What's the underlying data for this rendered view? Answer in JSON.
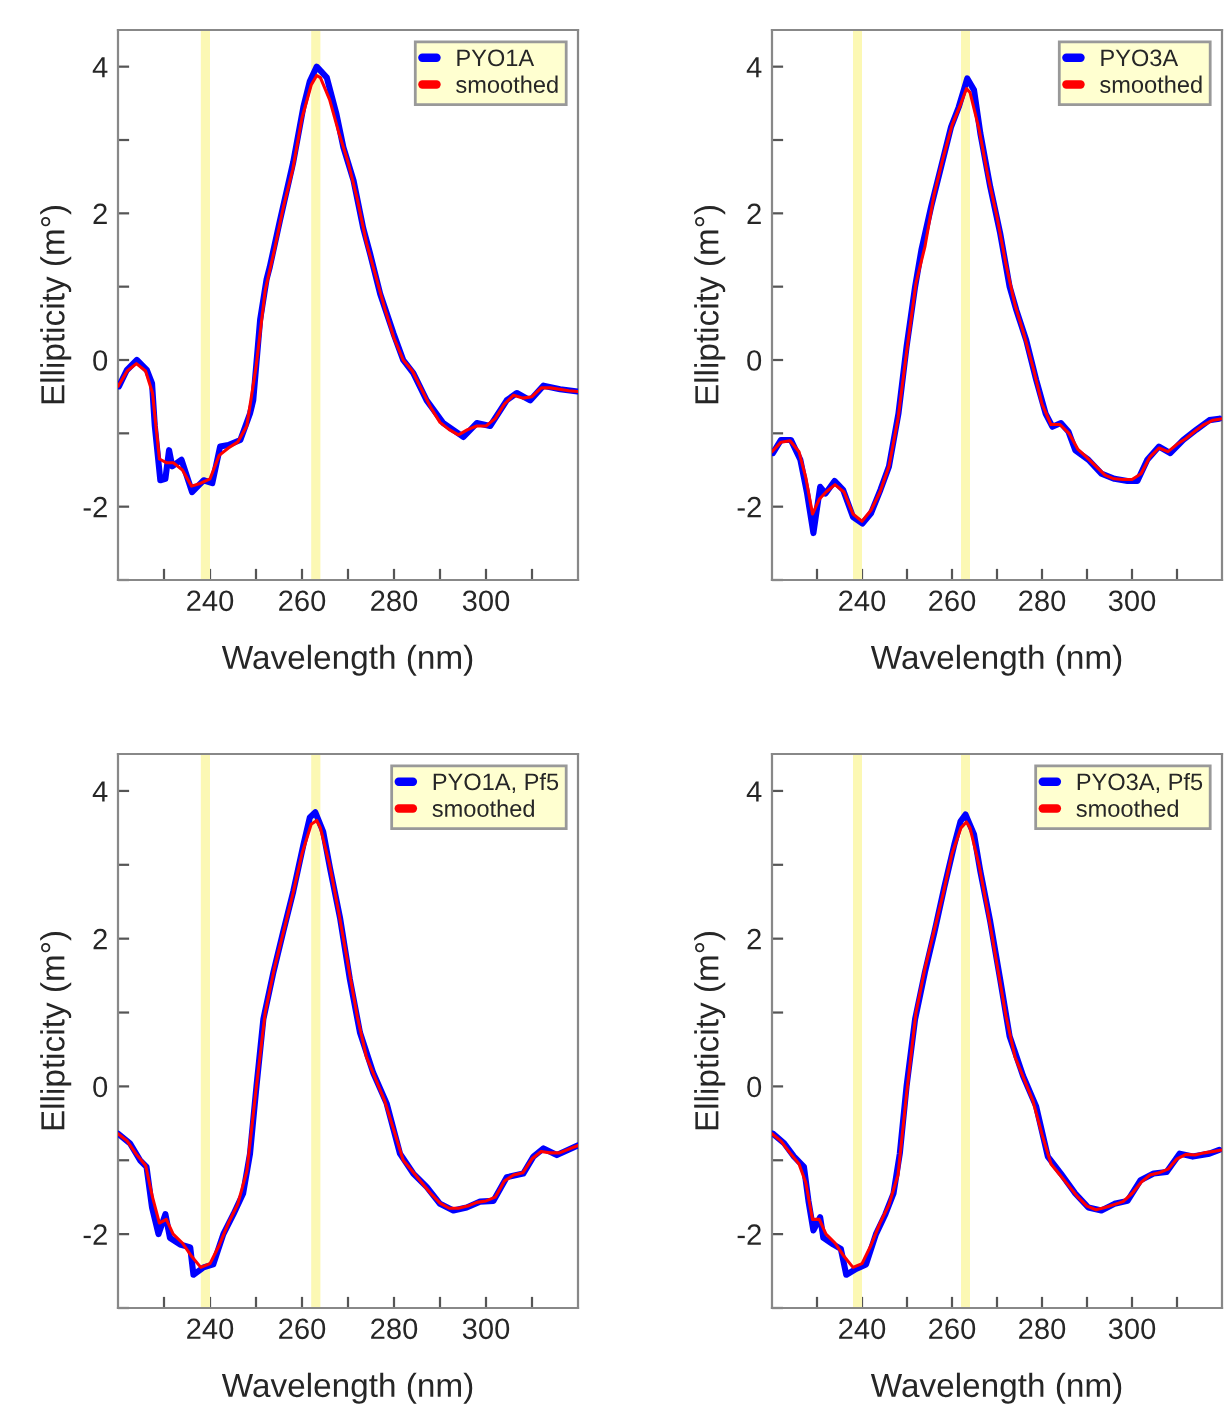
{
  "chart_data": [
    {
      "type": "line",
      "xlabel": "Wavelength (nm)",
      "ylabel": "Ellipticity (m°)",
      "xlim": [
        220,
        320
      ],
      "ylim": [
        -3,
        4.5
      ],
      "xticks": [
        {
          "value": 230,
          "label": null
        },
        240,
        {
          "value": 250,
          "label": null
        },
        260,
        {
          "value": 270,
          "label": null
        },
        280,
        {
          "value": 290,
          "label": null
        },
        300,
        {
          "value": 310,
          "label": null
        }
      ],
      "yticks": [
        {
          "value": -3,
          "label": null
        },
        -2,
        {
          "value": -1,
          "label": null
        },
        0,
        {
          "value": 1,
          "label": null
        },
        2,
        {
          "value": 3,
          "label": null
        },
        4
      ],
      "legend": "top right",
      "bands": [
        {
          "axis": "x",
          "from": 238,
          "to": 240,
          "color": "#fcf8b4"
        },
        {
          "axis": "x",
          "from": 262,
          "to": 264,
          "color": "#fcf8b4"
        }
      ],
      "series": [
        {
          "name": "PYO1A",
          "color": "#0000ff",
          "x": [
            220.2,
            221.9,
            224.1,
            226.3,
            227.4,
            228.0,
            229.2,
            230.3,
            231.1,
            231.8,
            233.8,
            236.1,
            238.6,
            240.5,
            242.2,
            244.0,
            246.6,
            248.7,
            249.4,
            250.9,
            252.3,
            253.0,
            255.2,
            258.1,
            260.3,
            261.7,
            263.2,
            265.4,
            267.5,
            269.0,
            271.2,
            273.3,
            274.8,
            277.0,
            279.9,
            282.0,
            284.2,
            287.1,
            290.7,
            295.1,
            298.0,
            300.9,
            304.5,
            306.7,
            309.6,
            312.5,
            316.1,
            319.9
          ],
          "values": [
            -0.36,
            -0.14,
            0.0,
            -0.14,
            -0.32,
            -0.9,
            -1.64,
            -1.62,
            -1.23,
            -1.45,
            -1.36,
            -1.8,
            -1.64,
            -1.68,
            -1.18,
            -1.16,
            -1.09,
            -0.73,
            -0.55,
            0.55,
            1.1,
            1.27,
            1.9,
            2.7,
            3.45,
            3.8,
            4.0,
            3.85,
            3.35,
            2.9,
            2.45,
            1.8,
            1.45,
            0.9,
            0.36,
            0.0,
            -0.18,
            -0.55,
            -0.86,
            -1.05,
            -0.86,
            -0.9,
            -0.55,
            -0.45,
            -0.55,
            -0.35,
            -0.4,
            -0.43
          ]
        },
        {
          "name": "smoothed",
          "color": "#ff0000",
          "x": [
            220,
            222,
            224,
            226,
            227.5,
            229,
            230.5,
            232,
            234,
            236,
            238,
            240,
            242,
            244,
            246,
            248,
            250,
            252,
            254,
            256,
            258,
            260,
            262,
            263.2,
            264,
            266,
            268,
            270,
            272,
            274,
            276,
            278,
            280,
            282,
            284,
            286,
            288,
            290,
            292,
            294,
            296,
            298,
            300,
            302,
            304,
            306,
            308,
            310,
            312,
            314,
            316,
            318,
            320
          ],
          "values": [
            -0.36,
            -0.15,
            -0.05,
            -0.15,
            -0.45,
            -1.35,
            -1.4,
            -1.4,
            -1.5,
            -1.72,
            -1.68,
            -1.62,
            -1.3,
            -1.2,
            -1.12,
            -0.9,
            -0.1,
            0.95,
            1.5,
            2.1,
            2.6,
            3.3,
            3.75,
            3.88,
            3.85,
            3.55,
            3.1,
            2.7,
            2.2,
            1.6,
            1.15,
            0.7,
            0.3,
            0.0,
            -0.15,
            -0.4,
            -0.65,
            -0.85,
            -0.95,
            -1.02,
            -0.95,
            -0.9,
            -0.9,
            -0.8,
            -0.6,
            -0.48,
            -0.52,
            -0.5,
            -0.38,
            -0.38,
            -0.4,
            -0.42,
            -0.43
          ]
        }
      ]
    },
    {
      "type": "line",
      "xlabel": "Wavelength (nm)",
      "ylabel": "Ellipticity (m°)",
      "xlim": [
        220,
        320
      ],
      "ylim": [
        -3,
        4.5
      ],
      "xticks": [
        {
          "value": 230,
          "label": null
        },
        240,
        {
          "value": 250,
          "label": null
        },
        260,
        {
          "value": 270,
          "label": null
        },
        280,
        {
          "value": 290,
          "label": null
        },
        300,
        {
          "value": 310,
          "label": null
        }
      ],
      "yticks": [
        {
          "value": -3,
          "label": null
        },
        -2,
        {
          "value": -1,
          "label": null
        },
        0,
        {
          "value": 1,
          "label": null
        },
        2,
        {
          "value": 3,
          "label": null
        },
        4
      ],
      "legend": "top right",
      "bands": [
        {
          "axis": "x",
          "from": 238,
          "to": 240,
          "color": "#fcf8b4"
        },
        {
          "axis": "x",
          "from": 262,
          "to": 264,
          "color": "#fcf8b4"
        }
      ],
      "series": [
        {
          "name": "PYO3A",
          "color": "#0000ff",
          "x": [
            220.2,
            222.0,
            224.2,
            226.3,
            227.8,
            229.2,
            230.7,
            231.9,
            233.9,
            235.8,
            238.0,
            240.1,
            242.0,
            244.1,
            246.0,
            248.1,
            249.9,
            251.8,
            253.2,
            255.4,
            257.6,
            259.8,
            261.5,
            263.4,
            264.9,
            266.3,
            268.5,
            270.7,
            272.8,
            274.3,
            276.5,
            278.7,
            280.8,
            282.3,
            284.2,
            285.9,
            287.4,
            290.3,
            293.2,
            296.1,
            299.0,
            301.2,
            303.4,
            306.0,
            308.5,
            311.4,
            314.3,
            317.2,
            319.4
          ],
          "values": [
            -1.27,
            -1.09,
            -1.09,
            -1.36,
            -1.82,
            -2.36,
            -1.73,
            -1.82,
            -1.65,
            -1.77,
            -2.14,
            -2.23,
            -2.09,
            -1.77,
            -1.45,
            -0.73,
            0.18,
            1.0,
            1.5,
            2.1,
            2.64,
            3.18,
            3.45,
            3.84,
            3.68,
            3.09,
            2.36,
            1.73,
            1.0,
            0.68,
            0.27,
            -0.27,
            -0.73,
            -0.91,
            -0.86,
            -0.98,
            -1.23,
            -1.36,
            -1.55,
            -1.62,
            -1.65,
            -1.65,
            -1.36,
            -1.18,
            -1.27,
            -1.09,
            -0.95,
            -0.82,
            -0.8
          ]
        },
        {
          "name": "smoothed",
          "color": "#ff0000",
          "x": [
            220,
            222,
            224,
            226,
            227.5,
            229,
            230.5,
            232,
            234,
            236,
            238,
            240,
            242,
            244,
            246,
            248,
            250,
            252,
            254,
            256,
            258,
            260,
            262,
            263.2,
            264,
            266,
            268,
            270,
            272,
            274,
            276,
            278,
            280,
            282,
            284,
            286,
            288,
            290,
            292,
            294,
            296,
            298,
            300,
            302,
            304,
            306,
            308,
            310,
            312,
            314,
            316,
            318,
            320
          ],
          "values": [
            -1.25,
            -1.12,
            -1.1,
            -1.25,
            -1.6,
            -2.1,
            -1.9,
            -1.8,
            -1.7,
            -1.8,
            -2.1,
            -2.2,
            -2.05,
            -1.8,
            -1.45,
            -0.8,
            0.15,
            1.05,
            1.55,
            2.25,
            2.75,
            3.2,
            3.5,
            3.7,
            3.65,
            3.15,
            2.5,
            1.95,
            1.3,
            0.75,
            0.35,
            -0.1,
            -0.6,
            -0.88,
            -0.88,
            -1.0,
            -1.22,
            -1.33,
            -1.45,
            -1.57,
            -1.62,
            -1.63,
            -1.63,
            -1.55,
            -1.32,
            -1.2,
            -1.25,
            -1.15,
            -1.07,
            -0.97,
            -0.88,
            -0.82,
            -0.8
          ]
        }
      ]
    },
    {
      "type": "line",
      "xlabel": "Wavelength (nm)",
      "ylabel": "Ellipticity (m°)",
      "xlim": [
        220,
        320
      ],
      "ylim": [
        -3,
        4.5
      ],
      "xticks": [
        {
          "value": 230,
          "label": null
        },
        240,
        {
          "value": 250,
          "label": null
        },
        260,
        {
          "value": 270,
          "label": null
        },
        280,
        {
          "value": 290,
          "label": null
        },
        300,
        {
          "value": 310,
          "label": null
        }
      ],
      "yticks": [
        {
          "value": -3,
          "label": null
        },
        -2,
        {
          "value": -1,
          "label": null
        },
        0,
        {
          "value": 1,
          "label": null
        },
        2,
        {
          "value": 3,
          "label": null
        },
        4
      ],
      "legend": "top right",
      "bands": [
        {
          "axis": "x",
          "from": 238,
          "to": 240,
          "color": "#fcf8b4"
        },
        {
          "axis": "x",
          "from": 262,
          "to": 264,
          "color": "#fcf8b4"
        }
      ],
      "series": [
        {
          "name": "PYO1A, Pf5",
          "color": "#0000ff",
          "x": [
            220.0,
            222.6,
            224.8,
            226.2,
            227.4,
            228.8,
            230.3,
            231.3,
            233.5,
            235.7,
            236.4,
            238.6,
            240.7,
            242.9,
            245.1,
            247.2,
            248.7,
            250.1,
            251.6,
            253.8,
            255.9,
            258.1,
            260.3,
            261.7,
            262.9,
            264.6,
            266.1,
            268.3,
            270.4,
            272.6,
            275.5,
            278.4,
            281.3,
            284.2,
            287.1,
            290.0,
            292.9,
            295.8,
            298.7,
            301.6,
            304.5,
            308.1,
            310.3,
            312.5,
            315.4,
            319.9
          ],
          "values": [
            -0.64,
            -0.77,
            -1.0,
            -1.09,
            -1.64,
            -2.0,
            -1.73,
            -2.05,
            -2.14,
            -2.18,
            -2.55,
            -2.45,
            -2.41,
            -2.0,
            -1.73,
            -1.45,
            -0.91,
            0.0,
            0.91,
            1.55,
            2.09,
            2.64,
            3.27,
            3.64,
            3.71,
            3.45,
            2.95,
            2.27,
            1.45,
            0.73,
            0.18,
            -0.23,
            -0.91,
            -1.18,
            -1.36,
            -1.59,
            -1.68,
            -1.64,
            -1.56,
            -1.55,
            -1.23,
            -1.18,
            -0.95,
            -0.84,
            -0.93,
            -0.8
          ]
        },
        {
          "name": "smoothed",
          "color": "#ff0000",
          "x": [
            220,
            222,
            224,
            226,
            227.5,
            229,
            230.5,
            232,
            234,
            236,
            238,
            240,
            242,
            244,
            246,
            248,
            250,
            252,
            254,
            256,
            258,
            260,
            262,
            263.2,
            264,
            266,
            268,
            270,
            272,
            274,
            276,
            278,
            280,
            282,
            284,
            286,
            288,
            290,
            292,
            294,
            296,
            298,
            300,
            302,
            304,
            306,
            308,
            310,
            312,
            314,
            316,
            318,
            320
          ],
          "values": [
            -0.64,
            -0.74,
            -0.92,
            -1.07,
            -1.5,
            -1.85,
            -1.8,
            -2.0,
            -2.12,
            -2.3,
            -2.45,
            -2.4,
            -2.15,
            -1.85,
            -1.6,
            -1.15,
            -0.05,
            1.0,
            1.6,
            2.1,
            2.6,
            3.15,
            3.55,
            3.6,
            3.5,
            3.0,
            2.35,
            1.65,
            0.95,
            0.4,
            0.1,
            -0.2,
            -0.6,
            -1.0,
            -1.15,
            -1.3,
            -1.45,
            -1.58,
            -1.65,
            -1.65,
            -1.62,
            -1.57,
            -1.55,
            -1.5,
            -1.28,
            -1.2,
            -1.17,
            -0.98,
            -0.88,
            -0.9,
            -0.9,
            -0.85,
            -0.8
          ]
        }
      ]
    },
    {
      "type": "line",
      "xlabel": "Wavelength (nm)",
      "ylabel": "Ellipticity (m°)",
      "xlim": [
        220,
        320
      ],
      "ylim": [
        -3,
        4.5
      ],
      "xticks": [
        {
          "value": 230,
          "label": null
        },
        240,
        {
          "value": 250,
          "label": null
        },
        260,
        {
          "value": 270,
          "label": null
        },
        280,
        {
          "value": 290,
          "label": null
        },
        300,
        {
          "value": 310,
          "label": null
        }
      ],
      "yticks": [
        {
          "value": -3,
          "label": null
        },
        -2,
        {
          "value": -1,
          "label": null
        },
        0,
        {
          "value": 1,
          "label": null
        },
        2,
        {
          "value": 3,
          "label": null
        },
        4
      ],
      "legend": "top right",
      "bands": [
        {
          "axis": "x",
          "from": 238,
          "to": 240,
          "color": "#fcf8b4"
        },
        {
          "axis": "x",
          "from": 262,
          "to": 264,
          "color": "#fcf8b4"
        }
      ],
      "series": [
        {
          "name": "PYO3A, Pf5",
          "color": "#0000ff",
          "x": [
            220.2,
            222.7,
            224.9,
            227.1,
            228.1,
            229.2,
            230.7,
            231.4,
            233.6,
            235.3,
            236.5,
            238.7,
            240.9,
            243.1,
            245.2,
            247.0,
            248.4,
            249.9,
            251.8,
            254.0,
            256.1,
            258.3,
            260.5,
            261.9,
            263.0,
            264.9,
            266.3,
            268.5,
            270.7,
            272.8,
            275.8,
            278.7,
            281.3,
            284.2,
            287.4,
            290.3,
            293.2,
            296.1,
            299.0,
            301.9,
            304.8,
            307.7,
            310.6,
            313.5,
            317.2,
            319.4
          ],
          "values": [
            -0.64,
            -0.77,
            -0.95,
            -1.09,
            -1.55,
            -1.95,
            -1.77,
            -2.05,
            -2.14,
            -2.2,
            -2.55,
            -2.47,
            -2.41,
            -2.0,
            -1.73,
            -1.45,
            -0.91,
            0.0,
            0.91,
            1.55,
            2.09,
            2.7,
            3.27,
            3.59,
            3.68,
            3.41,
            2.91,
            2.23,
            1.45,
            0.68,
            0.14,
            -0.27,
            -0.95,
            -1.18,
            -1.45,
            -1.64,
            -1.68,
            -1.59,
            -1.55,
            -1.27,
            -1.18,
            -1.16,
            -0.91,
            -0.95,
            -0.91,
            -0.86
          ]
        },
        {
          "name": "smoothed",
          "color": "#ff0000",
          "x": [
            220,
            222,
            224,
            226,
            227.5,
            229,
            230.5,
            232,
            234,
            236,
            238,
            240,
            242,
            244,
            246,
            248,
            250,
            252,
            254,
            256,
            258,
            260,
            262,
            263.2,
            264,
            266,
            268,
            270,
            272,
            274,
            276,
            278,
            280,
            282,
            284,
            286,
            288,
            290,
            292,
            294,
            296,
            298,
            300,
            302,
            304,
            306,
            308,
            310,
            312,
            314,
            316,
            318,
            320
          ],
          "values": [
            -0.64,
            -0.74,
            -0.9,
            -1.05,
            -1.3,
            -1.8,
            -1.8,
            -2.0,
            -2.12,
            -2.3,
            -2.45,
            -2.4,
            -2.15,
            -1.85,
            -1.6,
            -1.2,
            -0.05,
            1.0,
            1.6,
            2.1,
            2.6,
            3.15,
            3.5,
            3.58,
            3.5,
            3.0,
            2.35,
            1.65,
            0.95,
            0.4,
            0.1,
            -0.2,
            -0.65,
            -1.05,
            -1.2,
            -1.35,
            -1.5,
            -1.62,
            -1.67,
            -1.64,
            -1.6,
            -1.56,
            -1.45,
            -1.3,
            -1.2,
            -1.17,
            -1.12,
            -0.98,
            -0.92,
            -0.93,
            -0.9,
            -0.88,
            -0.86
          ]
        }
      ]
    }
  ]
}
